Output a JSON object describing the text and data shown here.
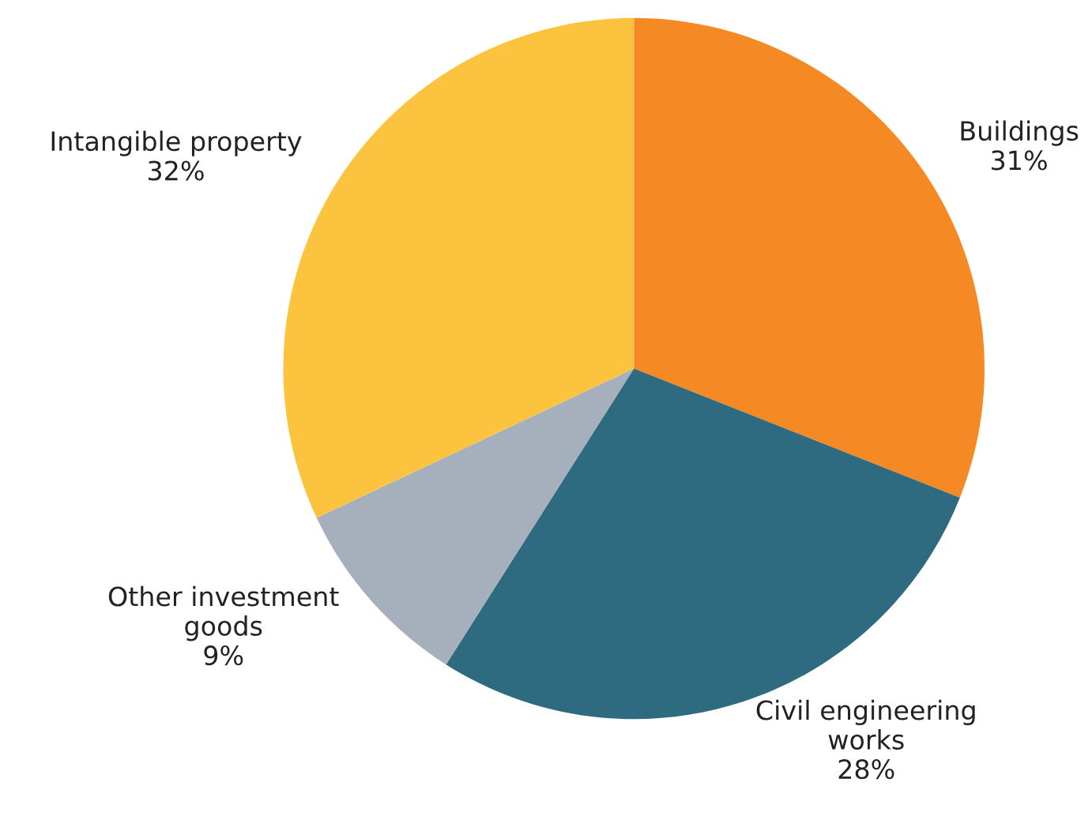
{
  "chart_data": {
    "type": "pie",
    "categories": [
      "Buildings",
      "Civil engineering\nworks",
      "Other investment\ngoods",
      "Intangible property"
    ],
    "values": [
      31,
      28,
      9,
      32
    ],
    "value_labels": [
      "31%",
      "28%",
      "9%",
      "32%"
    ],
    "colors": [
      "#f58a25",
      "#2e6b80",
      "#a6b0bd",
      "#fcc43e"
    ]
  }
}
